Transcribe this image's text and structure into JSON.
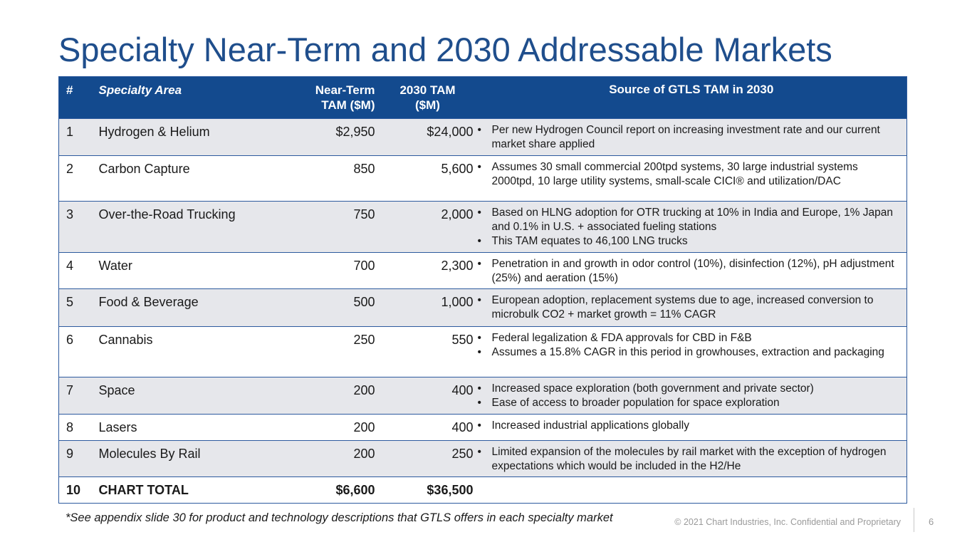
{
  "title": "Specialty Near-Term and 2030 Addressable Markets",
  "table": {
    "headers": {
      "num": "#",
      "area": "Specialty Area",
      "near_term_1": "Near-Term",
      "near_term_2": "TAM ($M)",
      "tam2030_1": "2030 TAM",
      "tam2030_2": "($M)",
      "source": "Source of GTLS TAM in 2030"
    },
    "rows": [
      {
        "num": "1",
        "area": "Hydrogen & Helium",
        "near": "$2,950",
        "tam": "$24,000",
        "sources": [
          "Per new Hydrogen Council report on increasing investment rate and our current market share applied"
        ]
      },
      {
        "num": "2",
        "area": "Carbon Capture",
        "near": "850",
        "tam": "5,600",
        "sources": [
          "Assumes 30 small commercial 200tpd systems, 30 large industrial systems 2000tpd, 10 large utility systems, small-scale CICI® and utilization/DAC"
        ]
      },
      {
        "num": "3",
        "area": "Over-the-Road Trucking",
        "near": "750",
        "tam": "2,000",
        "sources": [
          "Based on HLNG adoption for OTR trucking at 10% in India and Europe, 1% Japan and 0.1% in U.S. + associated fueling stations",
          "This TAM equates to 46,100 LNG trucks"
        ]
      },
      {
        "num": "4",
        "area": "Water",
        "near": "700",
        "tam": "2,300",
        "sources": [
          "Penetration in and growth in odor control (10%), disinfection (12%), pH adjustment (25%) and aeration (15%)"
        ]
      },
      {
        "num": "5",
        "area": "Food & Beverage",
        "near": "500",
        "tam": "1,000",
        "sources": [
          "European adoption, replacement systems due to age, increased conversion to microbulk CO2 + market growth = 11% CAGR"
        ]
      },
      {
        "num": "6",
        "area": "Cannabis",
        "near": "250",
        "tam": "550",
        "sources": [
          "Federal legalization & FDA approvals for CBD in F&B",
          "Assumes a 15.8% CAGR in this period in growhouses, extraction and packaging"
        ]
      },
      {
        "num": "7",
        "area": "Space",
        "near": "200",
        "tam": "400",
        "sources": [
          "Increased space exploration (both government and private sector)",
          "Ease of access to broader population for space exploration"
        ]
      },
      {
        "num": "8",
        "area": "Lasers",
        "near": "200",
        "tam": "400",
        "sources": [
          "Increased industrial applications globally"
        ]
      },
      {
        "num": "9",
        "area": "Molecules By Rail",
        "near": "200",
        "tam": "250",
        "sources": [
          "Limited expansion of the molecules by rail market with the exception of hydrogen expectations which would be included in the H2/He"
        ]
      }
    ],
    "total": {
      "num": "10",
      "area": "CHART TOTAL",
      "near": "$6,600",
      "tam": "$36,500"
    }
  },
  "footnote": "*See appendix slide 30 for product and technology descriptions that GTLS offers in each specialty market",
  "copyright": "© 2021 Chart Industries, Inc. Confidential and Proprietary",
  "page_number": "6",
  "bullet_glyph": "•"
}
